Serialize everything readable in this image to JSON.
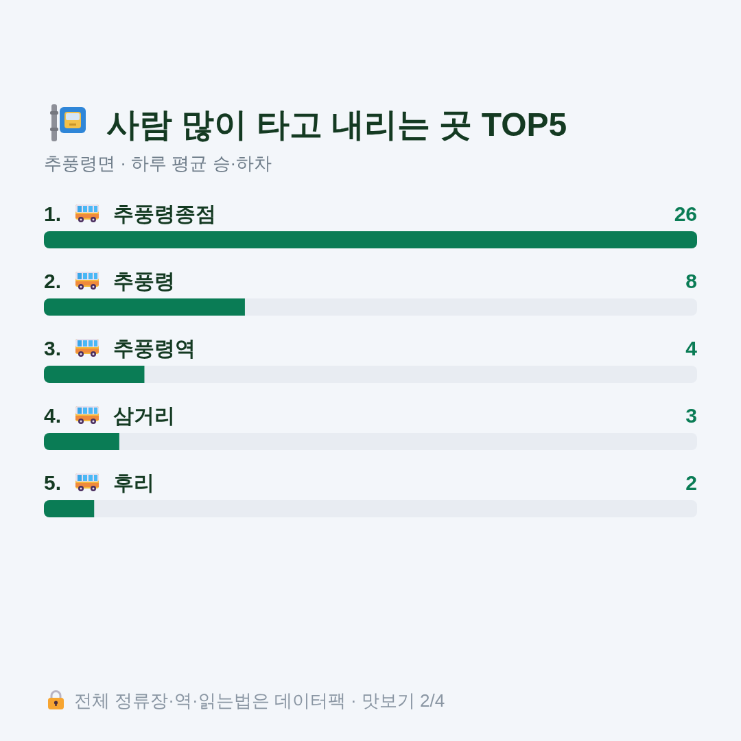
{
  "chart_data": {
    "type": "bar",
    "orientation": "horizontal",
    "title": "사람 많이 타고 내리는 곳 TOP5",
    "subtitle": "추풍령면 · 하루 평균 승·하차",
    "categories": [
      "1. 추풍령종점",
      "2. 추풍령",
      "3. 추풍령역",
      "4. 삼거리",
      "5. 후리"
    ],
    "values": [
      26,
      8,
      4,
      3,
      2
    ],
    "color": "#0a7c55",
    "data_labels": true,
    "annotations": [
      "전체 정류장·역·읽는법은 데이터팩 · 맛보기 2/4"
    ]
  }
}
